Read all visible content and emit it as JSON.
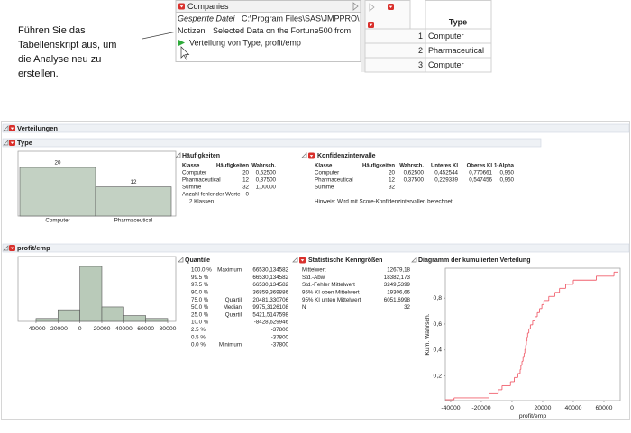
{
  "callout": {
    "lines": [
      "Führen Sie das",
      "Tabellenskript aus, um",
      "die Analyse neu zu",
      "erstellen."
    ]
  },
  "table_panel": {
    "title": "Companies",
    "properties": [
      {
        "name": "Gesperrte Datei",
        "value": "C:\\Program Files\\SAS\\JMPPRO\\"
      },
      {
        "name": "Notizen",
        "value": "Selected Data on the Fortune500 from"
      }
    ],
    "scripts": [
      "Verteilung von Type, profit/emp"
    ]
  },
  "data_grid": {
    "columns": [
      "Type"
    ],
    "rows": [
      [
        "1",
        "Computer"
      ],
      [
        "2",
        "Pharmaceutical"
      ],
      [
        "3",
        "Computer"
      ]
    ]
  },
  "report": {
    "title": "Verteilungen",
    "type_section": {
      "title": "Type",
      "frequencies": {
        "title": "Häufigkeiten",
        "header": [
          "Klasse",
          "Häufigkeiten",
          "Wahrsch."
        ],
        "rows": [
          [
            "Computer",
            "20",
            "0,62500"
          ],
          [
            "Pharmaceutical",
            "12",
            "0,37500"
          ],
          [
            "Summe",
            "32",
            "1,00000"
          ]
        ],
        "missing": [
          "Anzahl fehlender Werte",
          "0"
        ],
        "levels": "2 Klassen"
      },
      "confidence": {
        "title": "Konfidenzintervalle",
        "header": [
          "Klasse",
          "Häufigkeiten",
          "Wahrsch.",
          "Unteres KI",
          "Oberes KI",
          "1-Alpha"
        ],
        "rows": [
          [
            "Computer",
            "20",
            "0,62500",
            "0,452544",
            "0,770661",
            "0,950"
          ],
          [
            "Pharmaceutical",
            "12",
            "0,37500",
            "0,229339",
            "0,547456",
            "0,950"
          ],
          [
            "Summe",
            "32"
          ]
        ],
        "note": "Hinweis: Wird mit Score-Konfidenzintervallen berechnet."
      }
    },
    "profit_section": {
      "title": "profit/emp",
      "quantiles": {
        "title": "Quantile",
        "rows": [
          {
            "p": "100.0 %",
            "label": "Maximum",
            "v": "66530,134582"
          },
          {
            "p": "99.5 %",
            "v": "66530,134582"
          },
          {
            "p": "97.5 %",
            "v": "66530,134582"
          },
          {
            "p": "90.0 %",
            "v": "36859,369886"
          },
          {
            "p": "75.0 %",
            "label": "Quartil",
            "v": "20481,330706"
          },
          {
            "p": "50.0 %",
            "label": "Median",
            "v": "9975,3126108"
          },
          {
            "p": "25.0 %",
            "label": "Quartil",
            "v": "5421,5147598"
          },
          {
            "p": "10.0 %",
            "v": "-8428,629946"
          },
          {
            "p": "2.5 %",
            "v": "-37800"
          },
          {
            "p": "0.5 %",
            "v": "-37800"
          },
          {
            "p": "0.0 %",
            "label": "Minimum",
            "v": "-37800"
          }
        ]
      },
      "summary": {
        "title": "Statistische Kenngrößen",
        "rows": [
          [
            "Mittelwert",
            "12679,18"
          ],
          [
            "Std.-Abw.",
            "18382,173"
          ],
          [
            "Std.-Fehler Mittelwert",
            "3249,5399"
          ],
          [
            "95% KI oben Mittelwert",
            "19306,66"
          ],
          [
            "95% KI unten Mittelwert",
            "6051,6998"
          ],
          [
            "N",
            "32"
          ]
        ]
      }
    }
  },
  "chart_data": [
    {
      "type": "bar",
      "categories": [
        "Computer",
        "Pharmaceutical"
      ],
      "values": [
        20,
        12
      ],
      "color": "#c3d1c3"
    },
    {
      "type": "histogram",
      "bins": [
        -40000,
        -20000,
        0,
        20000,
        40000,
        60000,
        80000
      ],
      "values": [
        1,
        4,
        19,
        5,
        2,
        1
      ],
      "xlim": [
        -56400,
        87400
      ],
      "xticks": [
        -40000,
        -20000,
        0,
        20000,
        40000,
        60000,
        80000
      ],
      "color": "#b9cab9"
    },
    {
      "type": "line",
      "step": true,
      "title": "Diagramm der kumulierten Verteilung",
      "x": [
        -37800,
        -15000,
        -9000,
        -6500,
        -1000,
        1500,
        3800,
        5300,
        5800,
        6500,
        7200,
        7900,
        8400,
        8900,
        9400,
        9800,
        10200,
        11000,
        12000,
        13500,
        15000,
        16500,
        18000,
        19500,
        20800,
        24000,
        28000,
        31000,
        35000,
        40000,
        55000,
        66530
      ],
      "values": [
        0.031,
        0.063,
        0.094,
        0.125,
        0.156,
        0.188,
        0.219,
        0.25,
        0.281,
        0.313,
        0.344,
        0.375,
        0.406,
        0.438,
        0.469,
        0.5,
        0.531,
        0.563,
        0.594,
        0.625,
        0.656,
        0.688,
        0.719,
        0.75,
        0.781,
        0.813,
        0.844,
        0.875,
        0.906,
        0.938,
        0.969,
        1
      ],
      "xlim": [
        -43500,
        70600
      ],
      "xticks": [
        -40000,
        -20000,
        0,
        20000,
        40000,
        60000
      ],
      "ylim": [
        0.01,
        1.03
      ],
      "yticks": [
        {
          "value": 0.2,
          "label": "0,2"
        },
        {
          "value": 0.4,
          "label": "0,4"
        },
        {
          "value": 0.6,
          "label": "0,6"
        },
        {
          "value": 0.8,
          "label": "0,8"
        }
      ],
      "xlabel": "profit/emp",
      "ylabel": "Kum. Wahrsch.",
      "color": "#f0606e"
    }
  ]
}
